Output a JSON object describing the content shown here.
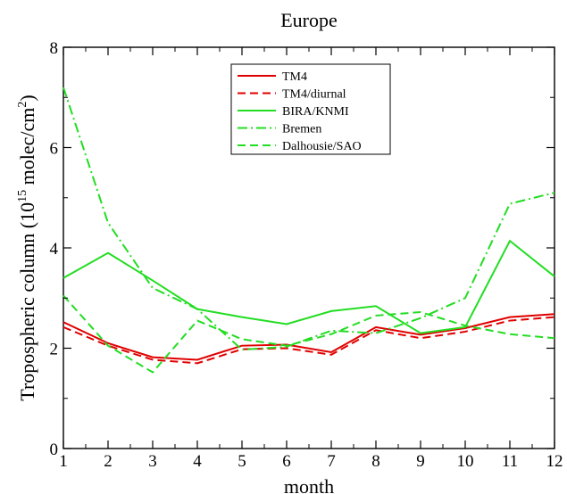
{
  "chart_data": {
    "type": "line",
    "title": "Europe",
    "xlabel": "month",
    "ylabel_prefix": "Tropospheric column (10",
    "ylabel_exp1": "15",
    "ylabel_mid": " molec/cm",
    "ylabel_exp2": "2",
    "ylabel_suffix": ")",
    "xlim": [
      1,
      12
    ],
    "ylim": [
      0,
      8
    ],
    "x_ticks": [
      1,
      2,
      3,
      4,
      5,
      6,
      7,
      8,
      9,
      10,
      11,
      12
    ],
    "y_ticks": [
      0,
      2,
      4,
      6,
      8
    ],
    "x": [
      1,
      2,
      3,
      4,
      5,
      6,
      7,
      8,
      9,
      10,
      11,
      12
    ],
    "grid": false,
    "legend_position": "top-center",
    "series": [
      {
        "name": "TM4",
        "color": "#e00000",
        "dash": "solid",
        "values": [
          2.52,
          2.1,
          1.82,
          1.77,
          2.05,
          2.07,
          1.92,
          2.42,
          2.27,
          2.4,
          2.62,
          2.68
        ]
      },
      {
        "name": "TM4/diurnal",
        "color": "#e00000",
        "dash": "dashed",
        "values": [
          2.42,
          2.05,
          1.77,
          1.7,
          1.98,
          2.0,
          1.87,
          2.36,
          2.2,
          2.33,
          2.55,
          2.62
        ]
      },
      {
        "name": "BIRA/KNMI",
        "color": "#22dd22",
        "dash": "solid",
        "values": [
          3.4,
          3.9,
          3.35,
          2.78,
          2.62,
          2.48,
          2.74,
          2.84,
          2.3,
          2.42,
          4.14,
          3.43
        ]
      },
      {
        "name": "Bremen",
        "color": "#22dd22",
        "dash": "dashdot",
        "values": [
          7.2,
          4.5,
          3.2,
          2.78,
          1.97,
          2.03,
          2.35,
          2.3,
          2.6,
          3.0,
          4.88,
          5.1
        ]
      },
      {
        "name": "Dalhousie/SAO",
        "color": "#22dd22",
        "dash": "dashed",
        "values": [
          3.05,
          2.05,
          1.52,
          2.55,
          2.18,
          2.05,
          2.28,
          2.65,
          2.72,
          2.45,
          2.28,
          2.2
        ]
      }
    ]
  }
}
